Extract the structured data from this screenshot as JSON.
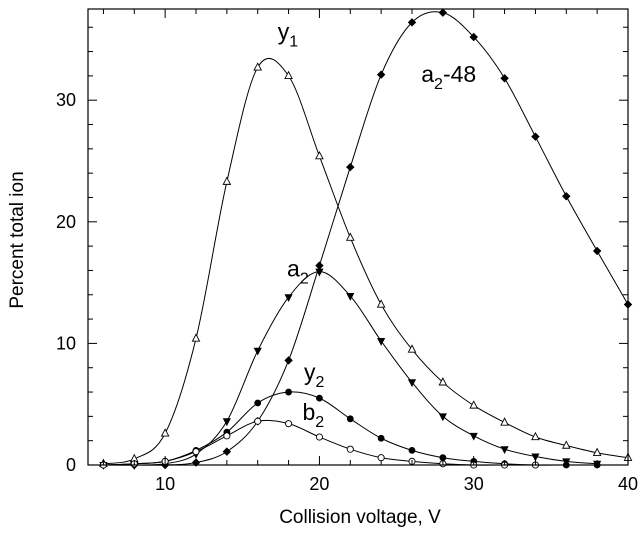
{
  "chart_data": {
    "type": "line",
    "xlabel": "Collision voltage, V",
    "ylabel": "Percent total ion",
    "xlim": [
      5,
      40
    ],
    "ylim": [
      0,
      37.5
    ],
    "x_ticks": [
      10,
      20,
      30,
      40
    ],
    "y_ticks": [
      0,
      10,
      20,
      30
    ],
    "grid": false,
    "legend": "none",
    "series": [
      {
        "name": "y1",
        "marker": "open-triangle",
        "x": [
          6,
          8,
          10,
          12,
          14,
          16,
          18,
          20,
          22,
          24,
          26,
          28,
          30,
          32,
          34,
          36,
          38,
          40
        ],
        "y": [
          0.1,
          0.5,
          2.6,
          10.4,
          23.3,
          32.7,
          32.0,
          25.4,
          18.7,
          13.2,
          9.5,
          6.8,
          4.9,
          3.5,
          2.3,
          1.6,
          1.0,
          0.6
        ]
      },
      {
        "name": "a2-48",
        "marker": "filled-diamond",
        "x": [
          6,
          8,
          10,
          12,
          14,
          16,
          18,
          20,
          22,
          24,
          26,
          28,
          30,
          32,
          34,
          36,
          38,
          40
        ],
        "y": [
          0.0,
          0.0,
          0.0,
          0.2,
          1.1,
          3.6,
          8.6,
          16.4,
          24.5,
          32.1,
          36.4,
          37.2,
          35.2,
          31.8,
          27.0,
          22.1,
          17.6,
          13.2
        ]
      },
      {
        "name": "a2",
        "marker": "filled-down-triangle",
        "x": [
          6,
          8,
          10,
          12,
          14,
          16,
          18,
          20,
          22,
          24,
          26,
          28,
          30,
          32,
          34,
          36,
          38
        ],
        "y": [
          0.0,
          0.0,
          0.1,
          0.9,
          3.6,
          9.4,
          13.8,
          15.9,
          13.9,
          10.2,
          6.8,
          4.0,
          2.4,
          1.3,
          0.7,
          0.3,
          0.1
        ]
      },
      {
        "name": "y2",
        "marker": "filled-circle",
        "x": [
          6,
          8,
          10,
          12,
          14,
          16,
          18,
          20,
          22,
          24,
          26,
          28,
          30,
          32,
          34,
          36,
          38
        ],
        "y": [
          0.0,
          0.1,
          0.3,
          1.2,
          2.7,
          5.1,
          6.0,
          5.5,
          3.8,
          2.2,
          1.2,
          0.6,
          0.3,
          0.1,
          0.0,
          0.0,
          0.0
        ]
      },
      {
        "name": "b2",
        "marker": "open-circle",
        "x": [
          6,
          8,
          10,
          12,
          14,
          16,
          18,
          20,
          22,
          24,
          26,
          28,
          30,
          32,
          34
        ],
        "y": [
          0.0,
          0.1,
          0.3,
          1.1,
          2.4,
          3.6,
          3.4,
          2.3,
          1.3,
          0.6,
          0.3,
          0.1,
          0.0,
          0.0,
          0.0
        ]
      }
    ],
    "annotations": [
      {
        "series": "y1",
        "base": "y",
        "sub": "1",
        "suffix": "",
        "x": 17.3,
        "y": 35.0
      },
      {
        "series": "a2-48",
        "base": "a",
        "sub": "2",
        "suffix": "-48",
        "x": 26.6,
        "y": 31.5
      },
      {
        "series": "a2",
        "base": "a",
        "sub": "2",
        "suffix": "",
        "x": 17.9,
        "y": 15.5
      },
      {
        "series": "y2",
        "base": "y",
        "sub": "2",
        "suffix": "",
        "x": 19.0,
        "y": 7.0
      },
      {
        "series": "b2",
        "base": "b",
        "sub": "2",
        "suffix": "",
        "x": 18.9,
        "y": 3.7
      }
    ]
  }
}
